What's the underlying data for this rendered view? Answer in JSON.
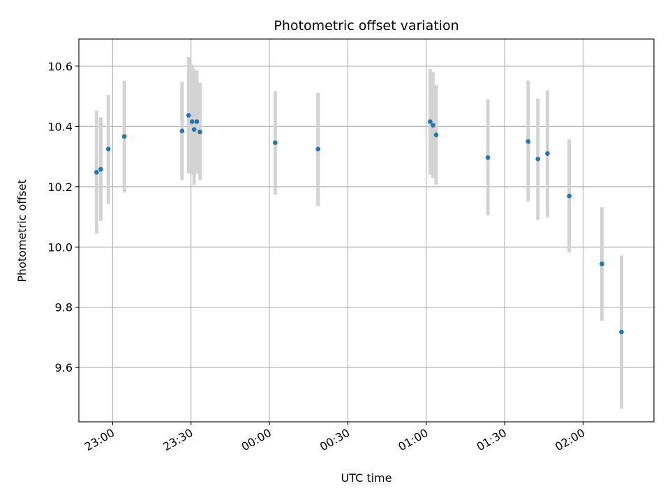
{
  "chart_data": {
    "type": "scatter",
    "title": "Photometric offset variation",
    "xlabel": "UTC time",
    "ylabel": "Photometric offset",
    "x_unit": "UTC time of night (hours after 22:00; values beyond 2 wrap past midnight)",
    "xlim": [
      0.785,
      4.452
    ],
    "ylim": [
      9.42,
      10.69
    ],
    "xticks": [
      {
        "value": 1.0,
        "label": "23:00"
      },
      {
        "value": 1.5,
        "label": "23:30"
      },
      {
        "value": 2.0,
        "label": "00:00"
      },
      {
        "value": 2.5,
        "label": "00:30"
      },
      {
        "value": 3.0,
        "label": "01:00"
      },
      {
        "value": 3.5,
        "label": "01:30"
      },
      {
        "value": 4.0,
        "label": "02:00"
      }
    ],
    "yticks": [
      {
        "value": 9.6,
        "label": "9.6"
      },
      {
        "value": 9.8,
        "label": "9.8"
      },
      {
        "value": 10.0,
        "label": "10.0"
      },
      {
        "value": 10.2,
        "label": "10.2"
      },
      {
        "value": 10.4,
        "label": "10.4"
      },
      {
        "value": 10.6,
        "label": "10.6"
      }
    ],
    "grid": true,
    "legend": false,
    "colors": {
      "marker": "#1f77b4",
      "errorbar": "#d3d3d3",
      "grid": "#b0b0b0"
    },
    "points": [
      {
        "x": 0.898,
        "y": 10.248,
        "ylow": 10.045,
        "yhigh": 10.452
      },
      {
        "x": 0.925,
        "y": 10.258,
        "ylow": 10.087,
        "yhigh": 10.43
      },
      {
        "x": 0.973,
        "y": 10.325,
        "ylow": 10.143,
        "yhigh": 10.505
      },
      {
        "x": 1.075,
        "y": 10.367,
        "ylow": 10.181,
        "yhigh": 10.552
      },
      {
        "x": 1.443,
        "y": 10.385,
        "ylow": 10.222,
        "yhigh": 10.549
      },
      {
        "x": 1.485,
        "y": 10.437,
        "ylow": 10.244,
        "yhigh": 10.63
      },
      {
        "x": 1.507,
        "y": 10.416,
        "ylow": 10.24,
        "yhigh": 10.605
      },
      {
        "x": 1.52,
        "y": 10.39,
        "ylow": 10.205,
        "yhigh": 10.59
      },
      {
        "x": 1.537,
        "y": 10.416,
        "ylow": 10.243,
        "yhigh": 10.585
      },
      {
        "x": 1.557,
        "y": 10.382,
        "ylow": 10.222,
        "yhigh": 10.545
      },
      {
        "x": 2.037,
        "y": 10.346,
        "ylow": 10.173,
        "yhigh": 10.517
      },
      {
        "x": 2.31,
        "y": 10.325,
        "ylow": 10.136,
        "yhigh": 10.512
      },
      {
        "x": 3.025,
        "y": 10.416,
        "ylow": 10.24,
        "yhigh": 10.59
      },
      {
        "x": 3.043,
        "y": 10.404,
        "ylow": 10.23,
        "yhigh": 10.58
      },
      {
        "x": 3.063,
        "y": 10.372,
        "ylow": 10.207,
        "yhigh": 10.537
      },
      {
        "x": 3.393,
        "y": 10.297,
        "ylow": 10.105,
        "yhigh": 10.49
      },
      {
        "x": 3.65,
        "y": 10.35,
        "ylow": 10.15,
        "yhigh": 10.552
      },
      {
        "x": 3.712,
        "y": 10.292,
        "ylow": 10.09,
        "yhigh": 10.492
      },
      {
        "x": 3.773,
        "y": 10.31,
        "ylow": 10.098,
        "yhigh": 10.52
      },
      {
        "x": 3.912,
        "y": 10.169,
        "ylow": 9.982,
        "yhigh": 10.358
      },
      {
        "x": 4.12,
        "y": 9.944,
        "ylow": 9.755,
        "yhigh": 10.132
      },
      {
        "x": 4.245,
        "y": 9.718,
        "ylow": 9.463,
        "yhigh": 9.972
      }
    ]
  }
}
